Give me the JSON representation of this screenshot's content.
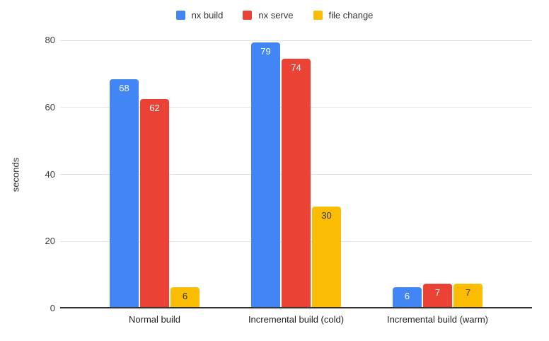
{
  "chart_data": {
    "type": "bar",
    "title": "",
    "categories": [
      "Normal build",
      "Incremental build (cold)",
      "Incremental build (warm)"
    ],
    "series": [
      {
        "name": "nx build",
        "color": "#4285F4",
        "label_color": "#FFFFFF",
        "values": [
          68,
          79,
          6
        ]
      },
      {
        "name": "nx serve",
        "color": "#EA4335",
        "label_color": "#FFFFFF",
        "values": [
          62,
          74,
          7
        ]
      },
      {
        "name": "file change",
        "color": "#FBBC04",
        "label_color": "#333333",
        "values": [
          6,
          30,
          7
        ]
      }
    ],
    "xlabel": "",
    "ylabel": "seconds",
    "yticks": [
      0,
      20,
      40,
      60,
      80
    ],
    "ylim": [
      0,
      80
    ],
    "grid": true,
    "legend_position": "top",
    "background": "#FFFFFF",
    "gridline_color": "#E3E3E3",
    "axis_line_color": "#333333",
    "text_color": "#333333",
    "bar_value_labels": true
  }
}
